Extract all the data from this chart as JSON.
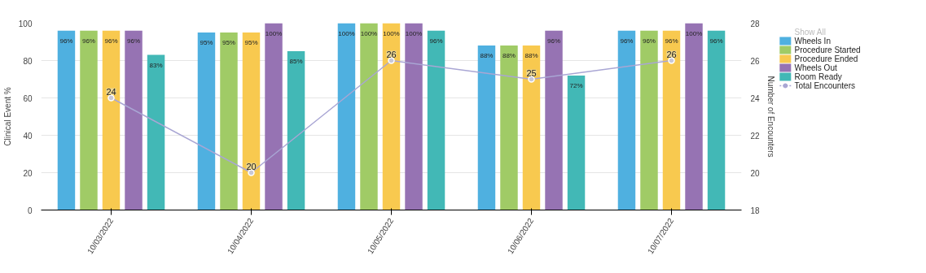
{
  "chart_data": {
    "type": "bar",
    "categories": [
      "10/03/2022",
      "10/04/2022",
      "10/05/2022",
      "10/06/2022",
      "10/07/2022"
    ],
    "ylabel": "Clinical Event %",
    "y2label": "Number of Encounters",
    "ylim": [
      0,
      100
    ],
    "yticks": [
      0,
      20,
      40,
      60,
      80,
      100
    ],
    "y2lim": [
      18,
      28
    ],
    "y2ticks": [
      18,
      20,
      22,
      24,
      26,
      28
    ],
    "grid": "y",
    "legend": "right",
    "annotations": [
      "Show All"
    ],
    "series": [
      {
        "name": "Wheels In",
        "color": "#4fb0e0",
        "values": [
          96,
          95,
          100,
          88,
          96
        ],
        "value_labels": [
          "96%",
          "95%",
          "100%",
          "88%",
          "96%"
        ]
      },
      {
        "name": "Procedure Started",
        "color": "#a0cb66",
        "values": [
          96,
          95,
          100,
          88,
          96
        ],
        "value_labels": [
          "96%",
          "95%",
          "100%",
          "88%",
          "96%"
        ]
      },
      {
        "name": "Procedure Ended",
        "color": "#f8c94f",
        "values": [
          96,
          95,
          100,
          88,
          96
        ],
        "value_labels": [
          "96%",
          "95%",
          "100%",
          "88%",
          "96%"
        ]
      },
      {
        "name": "Wheels Out",
        "color": "#9673b3",
        "values": [
          96,
          100,
          100,
          96,
          100
        ],
        "value_labels": [
          "96%",
          "100%",
          "100%",
          "96%",
          "100%"
        ]
      },
      {
        "name": "Room Ready",
        "color": "#42b8b6",
        "values": [
          83,
          85,
          96,
          72,
          96
        ],
        "value_labels": [
          "83%",
          "85%",
          "96%",
          "72%",
          "96%"
        ]
      },
      {
        "name": "Total Encounters",
        "type": "line",
        "axis": "y2",
        "marker": "circle",
        "color": "#a9a6d4",
        "values": [
          24,
          20,
          26,
          25,
          26
        ],
        "value_labels": [
          "24",
          "20",
          "26",
          "25",
          "26"
        ]
      }
    ]
  }
}
